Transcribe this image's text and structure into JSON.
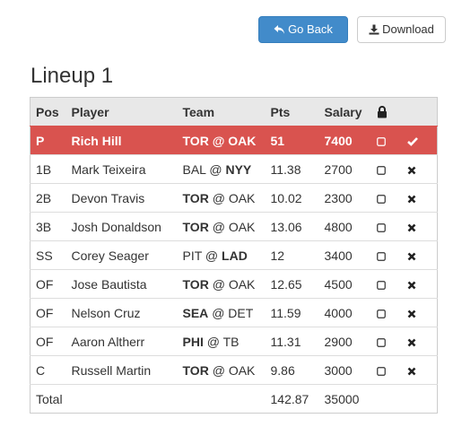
{
  "toolbar": {
    "go_back_label": "Go Back",
    "download_label": "Download"
  },
  "lineup_title": "Lineup 1",
  "table": {
    "headers": {
      "pos": "Pos",
      "player": "Player",
      "team": "Team",
      "pts": "Pts",
      "salary": "Salary",
      "lock": "lock-icon"
    },
    "rows": [
      {
        "pos": "P",
        "player": "Rich Hill",
        "away": "TOR",
        "away_bold": true,
        "home": "OAK",
        "home_bold": true,
        "pts": "51",
        "salary": "7400",
        "selected": true,
        "action": "check-icon"
      },
      {
        "pos": "1B",
        "player": "Mark Teixeira",
        "away": "BAL",
        "away_bold": false,
        "home": "NYY",
        "home_bold": true,
        "pts": "11.38",
        "salary": "2700",
        "selected": false,
        "action": "remove-icon"
      },
      {
        "pos": "2B",
        "player": "Devon Travis",
        "away": "TOR",
        "away_bold": true,
        "home": "OAK",
        "home_bold": false,
        "pts": "10.02",
        "salary": "2300",
        "selected": false,
        "action": "remove-icon"
      },
      {
        "pos": "3B",
        "player": "Josh Donaldson",
        "away": "TOR",
        "away_bold": true,
        "home": "OAK",
        "home_bold": false,
        "pts": "13.06",
        "salary": "4800",
        "selected": false,
        "action": "remove-icon"
      },
      {
        "pos": "SS",
        "player": "Corey Seager",
        "away": "PIT",
        "away_bold": false,
        "home": "LAD",
        "home_bold": true,
        "pts": "12",
        "salary": "3400",
        "selected": false,
        "action": "remove-icon"
      },
      {
        "pos": "OF",
        "player": "Jose Bautista",
        "away": "TOR",
        "away_bold": true,
        "home": "OAK",
        "home_bold": false,
        "pts": "12.65",
        "salary": "4500",
        "selected": false,
        "action": "remove-icon"
      },
      {
        "pos": "OF",
        "player": "Nelson Cruz",
        "away": "SEA",
        "away_bold": true,
        "home": "DET",
        "home_bold": false,
        "pts": "11.59",
        "salary": "4000",
        "selected": false,
        "action": "remove-icon"
      },
      {
        "pos": "OF",
        "player": "Aaron Altherr",
        "away": "PHI",
        "away_bold": true,
        "home": "TB",
        "home_bold": false,
        "pts": "11.31",
        "salary": "2900",
        "selected": false,
        "action": "remove-icon"
      },
      {
        "pos": "C",
        "player": "Russell Martin",
        "away": "TOR",
        "away_bold": true,
        "home": "OAK",
        "home_bold": false,
        "pts": "9.86",
        "salary": "3000",
        "selected": false,
        "action": "remove-icon"
      }
    ],
    "team_separator": "@",
    "total": {
      "label": "Total",
      "pts": "142.87",
      "salary": "35000"
    }
  },
  "colors": {
    "primary_button": "#428bca",
    "selected_row": "#d9534f",
    "header_bg": "#e8e8e8"
  }
}
